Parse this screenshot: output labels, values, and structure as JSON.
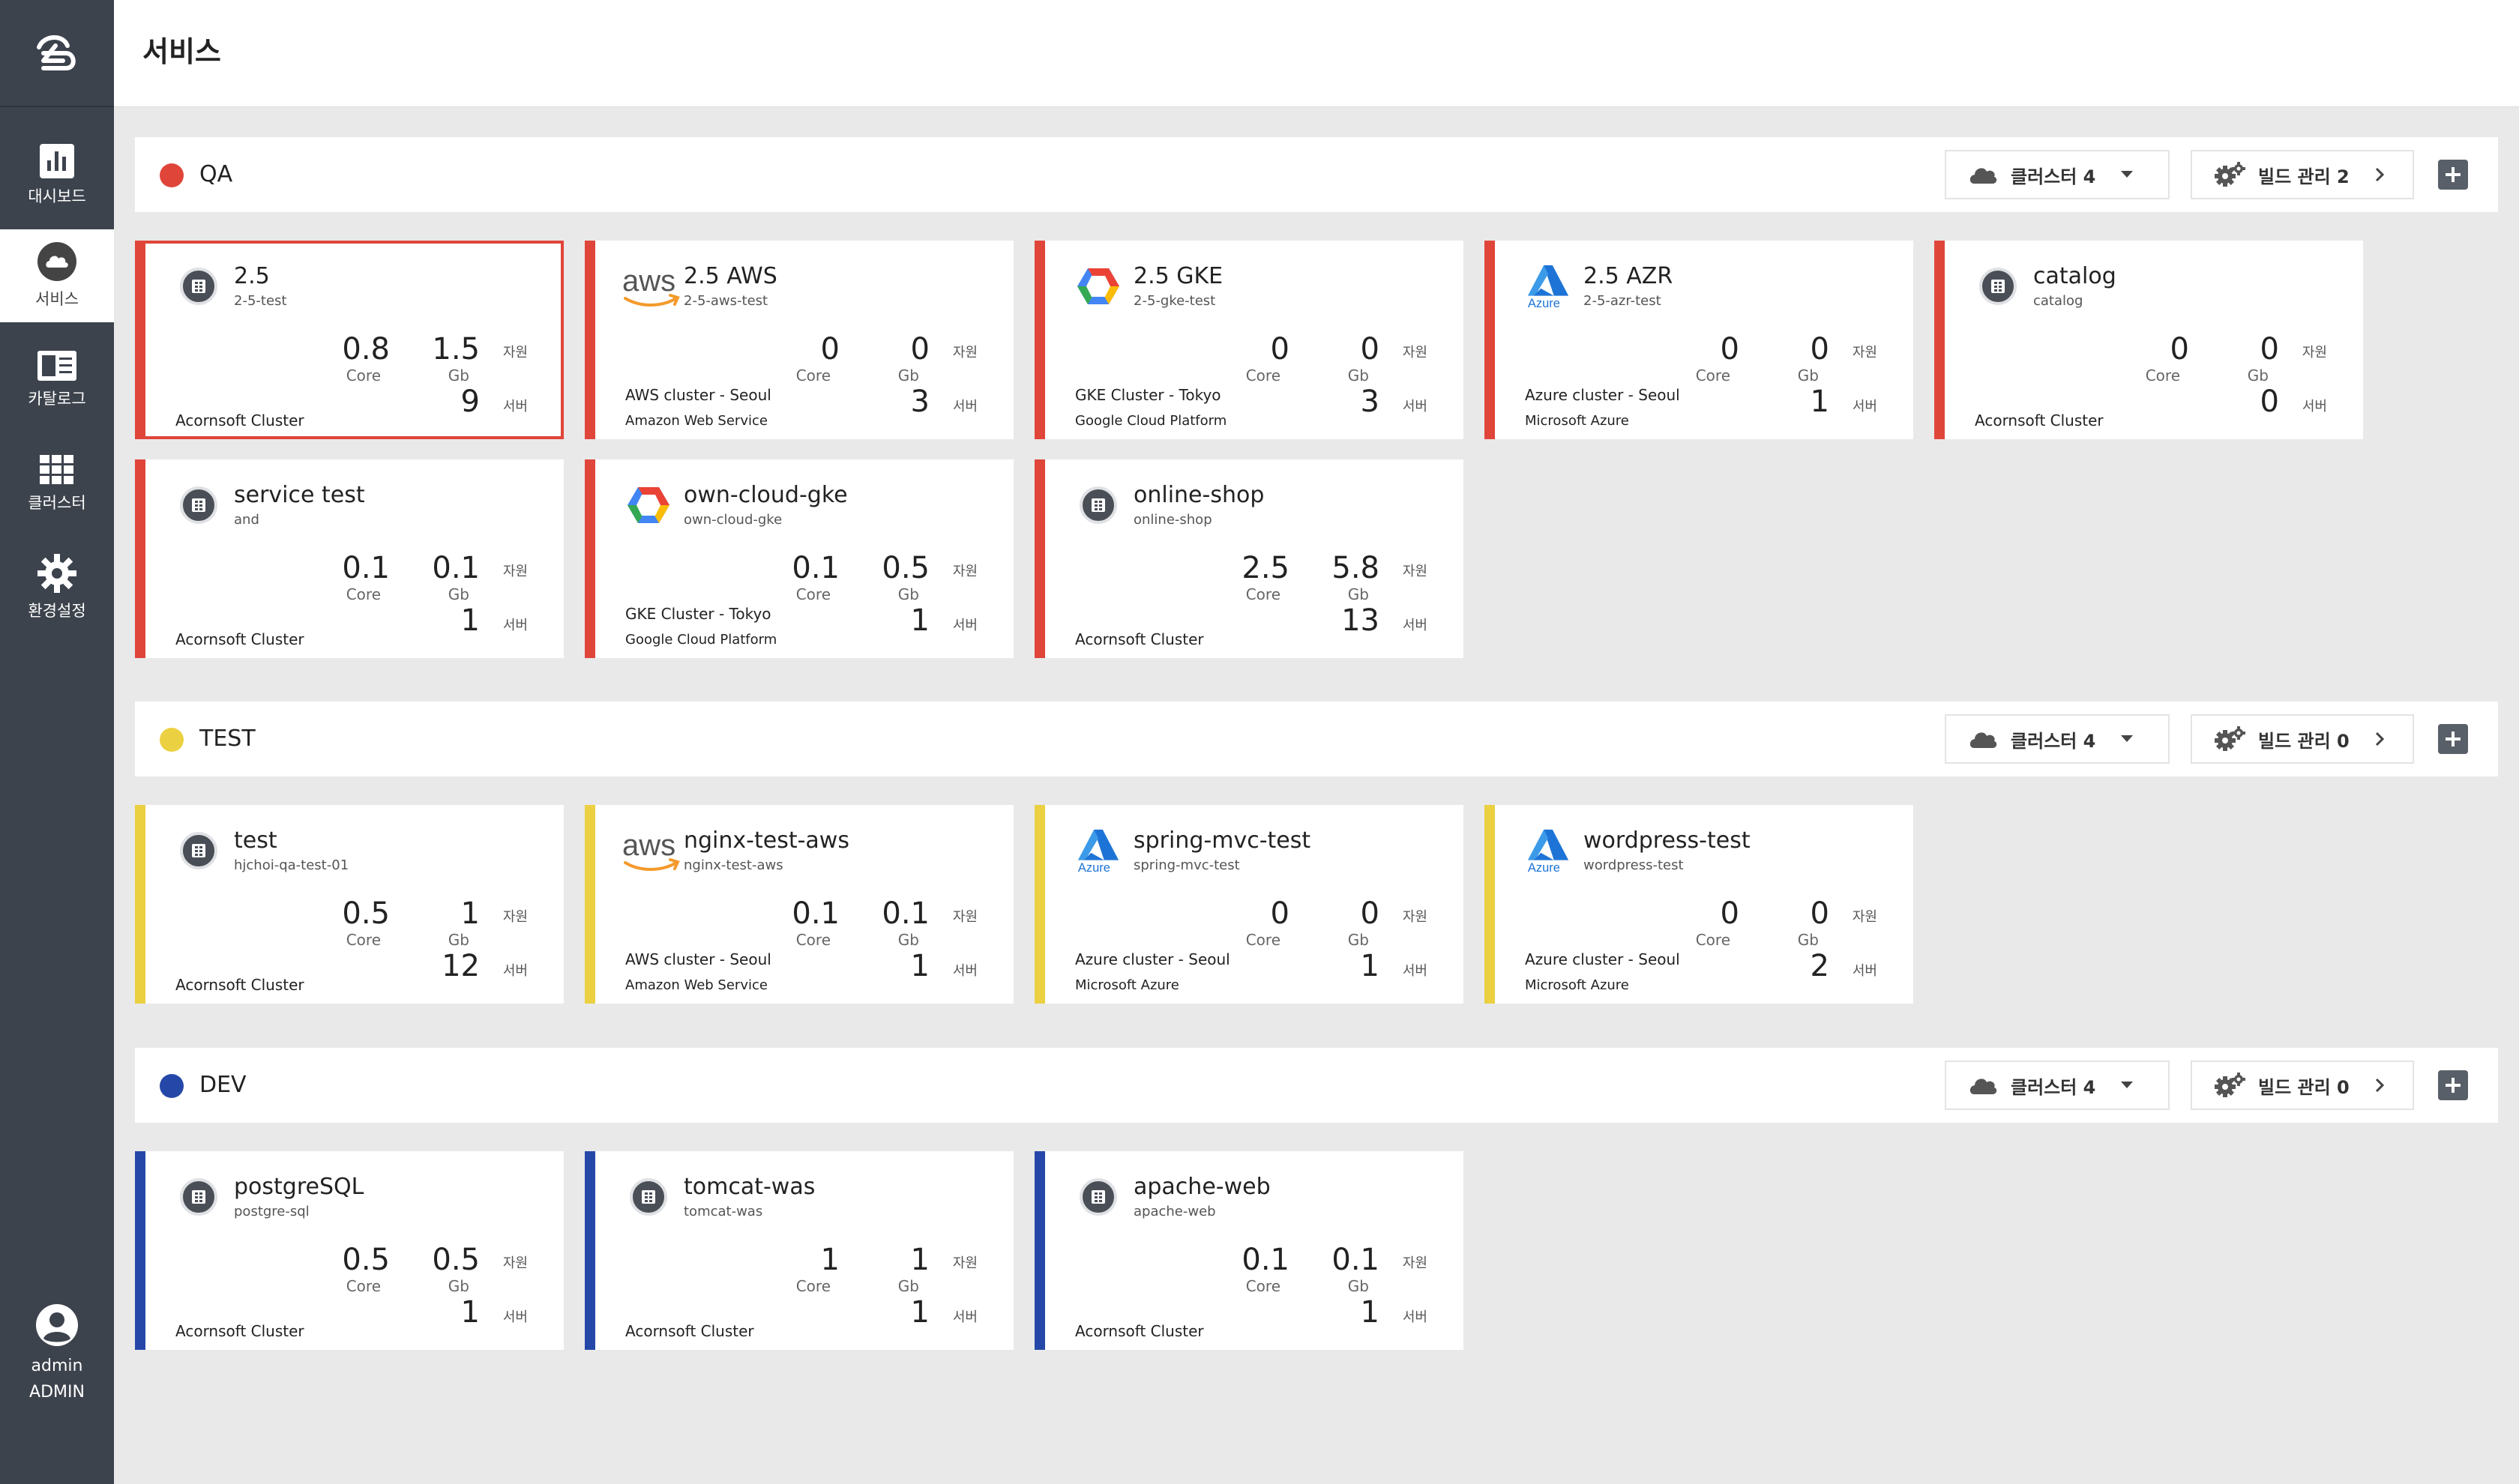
{
  "app": {
    "page_title": "서비스"
  },
  "sidebar": {
    "items": [
      {
        "label": "대시보드",
        "icon": "dashboard-icon"
      },
      {
        "label": "서비스",
        "icon": "cloud-icon",
        "active": true
      },
      {
        "label": "카탈로그",
        "icon": "catalog-icon"
      },
      {
        "label": "클러스터",
        "icon": "grid-icon"
      },
      {
        "label": "환경설정",
        "icon": "gear-icon"
      }
    ],
    "user": {
      "name": "admin",
      "role": "ADMIN"
    }
  },
  "colors": {
    "sidebar_bg": "#3d434d",
    "qa": "#e0453a",
    "test": "#ebd041",
    "dev": "#2548a8"
  },
  "groups": [
    {
      "name": "QA",
      "cluster_label": "클러스터 4",
      "build_label": "빌드 관리 2",
      "services": [
        {
          "name": "2.5",
          "sub": "2-5-test",
          "icon": "service-icon",
          "core": "0.8",
          "core_unit": "Core",
          "gb": "1.5",
          "gb_unit": "Gb",
          "res_label": "자원",
          "servers": "9",
          "srv_label": "서버",
          "cluster": "Acornsoft Cluster",
          "provider": ""
        },
        {
          "name": "2.5 AWS",
          "sub": "2-5-aws-test",
          "icon": "aws-icon",
          "core": "0",
          "core_unit": "Core",
          "gb": "0",
          "gb_unit": "Gb",
          "res_label": "자원",
          "servers": "3",
          "srv_label": "서버",
          "cluster": "AWS cluster - Seoul",
          "provider": "Amazon Web Service"
        },
        {
          "name": "2.5 GKE",
          "sub": "2-5-gke-test",
          "icon": "gke-icon",
          "core": "0",
          "core_unit": "Core",
          "gb": "0",
          "gb_unit": "Gb",
          "res_label": "자원",
          "servers": "3",
          "srv_label": "서버",
          "cluster": "GKE Cluster - Tokyo",
          "provider": "Google Cloud Platform"
        },
        {
          "name": "2.5 AZR",
          "sub": "2-5-azr-test",
          "icon": "azure-icon",
          "core": "0",
          "core_unit": "Core",
          "gb": "0",
          "gb_unit": "Gb",
          "res_label": "자원",
          "servers": "1",
          "srv_label": "서버",
          "cluster": "Azure cluster - Seoul",
          "provider": "Microsoft Azure"
        },
        {
          "name": "catalog",
          "sub": "catalog",
          "icon": "service-icon",
          "core": "0",
          "core_unit": "Core",
          "gb": "0",
          "gb_unit": "Gb",
          "res_label": "자원",
          "servers": "0",
          "srv_label": "서버",
          "cluster": "Acornsoft Cluster",
          "provider": ""
        },
        {
          "name": "service test",
          "sub": "and",
          "icon": "service-icon",
          "core": "0.1",
          "core_unit": "Core",
          "gb": "0.1",
          "gb_unit": "Gb",
          "res_label": "자원",
          "servers": "1",
          "srv_label": "서버",
          "cluster": "Acornsoft Cluster",
          "provider": ""
        },
        {
          "name": "own-cloud-gke",
          "sub": "own-cloud-gke",
          "icon": "gke-icon",
          "core": "0.1",
          "core_unit": "Core",
          "gb": "0.5",
          "gb_unit": "Gb",
          "res_label": "자원",
          "servers": "1",
          "srv_label": "서버",
          "cluster": "GKE Cluster - Tokyo",
          "provider": "Google Cloud Platform"
        },
        {
          "name": "online-shop",
          "sub": "online-shop",
          "icon": "service-icon",
          "core": "2.5",
          "core_unit": "Core",
          "gb": "5.8",
          "gb_unit": "Gb",
          "res_label": "자원",
          "servers": "13",
          "srv_label": "서버",
          "cluster": "Acornsoft Cluster",
          "provider": ""
        }
      ]
    },
    {
      "name": "TEST",
      "cluster_label": "클러스터 4",
      "build_label": "빌드 관리 0",
      "services": [
        {
          "name": "test",
          "sub": "hjchoi-qa-test-01",
          "icon": "service-icon",
          "core": "0.5",
          "core_unit": "Core",
          "gb": "1",
          "gb_unit": "Gb",
          "res_label": "자원",
          "servers": "12",
          "srv_label": "서버",
          "cluster": "Acornsoft Cluster",
          "provider": ""
        },
        {
          "name": "nginx-test-aws",
          "sub": "nginx-test-aws",
          "icon": "aws-icon",
          "core": "0.1",
          "core_unit": "Core",
          "gb": "0.1",
          "gb_unit": "Gb",
          "res_label": "자원",
          "servers": "1",
          "srv_label": "서버",
          "cluster": "AWS cluster - Seoul",
          "provider": "Amazon Web Service"
        },
        {
          "name": "spring-mvc-test",
          "sub": "spring-mvc-test",
          "icon": "azure-icon",
          "core": "0",
          "core_unit": "Core",
          "gb": "0",
          "gb_unit": "Gb",
          "res_label": "자원",
          "servers": "1",
          "srv_label": "서버",
          "cluster": "Azure cluster - Seoul",
          "provider": "Microsoft Azure"
        },
        {
          "name": "wordpress-test",
          "sub": "wordpress-test",
          "icon": "azure-icon",
          "core": "0",
          "core_unit": "Core",
          "gb": "0",
          "gb_unit": "Gb",
          "res_label": "자원",
          "servers": "2",
          "srv_label": "서버",
          "cluster": "Azure cluster - Seoul",
          "provider": "Microsoft Azure"
        }
      ]
    },
    {
      "name": "DEV",
      "cluster_label": "클러스터 4",
      "build_label": "빌드 관리 0",
      "services": [
        {
          "name": "postgreSQL",
          "sub": "postgre-sql",
          "icon": "service-icon",
          "core": "0.5",
          "core_unit": "Core",
          "gb": "0.5",
          "gb_unit": "Gb",
          "res_label": "자원",
          "servers": "1",
          "srv_label": "서버",
          "cluster": "Acornsoft Cluster",
          "provider": ""
        },
        {
          "name": "tomcat-was",
          "sub": "tomcat-was",
          "icon": "service-icon",
          "core": "1",
          "core_unit": "Core",
          "gb": "1",
          "gb_unit": "Gb",
          "res_label": "자원",
          "servers": "1",
          "srv_label": "서버",
          "cluster": "Acornsoft Cluster",
          "provider": ""
        },
        {
          "name": "apache-web",
          "sub": "apache-web",
          "icon": "service-icon",
          "core": "0.1",
          "core_unit": "Core",
          "gb": "0.1",
          "gb_unit": "Gb",
          "res_label": "자원",
          "servers": "1",
          "srv_label": "서버",
          "cluster": "Acornsoft Cluster",
          "provider": ""
        }
      ]
    }
  ]
}
